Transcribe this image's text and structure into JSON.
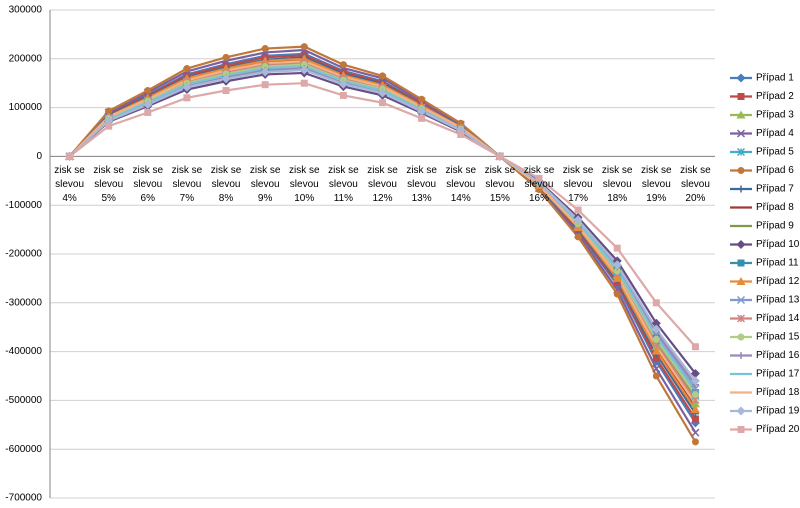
{
  "chart_data": {
    "type": "line",
    "categories": [
      "zisk se slevou 4%",
      "zisk se slevou 5%",
      "zisk se slevou 6%",
      "zisk se slevou 7%",
      "zisk se slevou 8%",
      "zisk se slevou 9%",
      "zisk se slevou 10%",
      "zisk se slevou 11%",
      "zisk se slevou 12%",
      "zisk se slevou 13%",
      "zisk se slevou 14%",
      "zisk se slevou 15%",
      "zisk se slevou 16%",
      "zisk se slevou 17%",
      "zisk se slevou 18%",
      "zisk se slevou 19%",
      "zisk se slevou 20%"
    ],
    "ylim": [
      -700000,
      300000
    ],
    "yticks": [
      -700000,
      -600000,
      -500000,
      -400000,
      -300000,
      -200000,
      -100000,
      0,
      100000,
      200000,
      300000
    ],
    "grid": true,
    "legend": "right",
    "series": [
      {
        "name": "Případ 1",
        "color": "#4a7ebb",
        "marker": "diamond",
        "values": [
          0,
          87000,
          126000,
          168000,
          189000,
          206000,
          210000,
          175000,
          154000,
          109000,
          63000,
          0,
          -63000,
          -154000,
          -263000,
          -420000,
          -546000
        ]
      },
      {
        "name": "Případ 2",
        "color": "#be4b48",
        "marker": "square",
        "values": [
          0,
          86000,
          124000,
          166000,
          186000,
          203000,
          207000,
          173000,
          152000,
          108000,
          62000,
          0,
          -62000,
          -152000,
          -259000,
          -414000,
          -538000
        ]
      },
      {
        "name": "Případ 3",
        "color": "#98b954",
        "marker": "triangle",
        "values": [
          0,
          81000,
          117000,
          156000,
          176000,
          191000,
          195000,
          163000,
          143000,
          101000,
          59000,
          0,
          -59000,
          -143000,
          -244000,
          -390000,
          -507000
        ]
      },
      {
        "name": "Případ 4",
        "color": "#7d60a0",
        "marker": "x",
        "values": [
          0,
          90000,
          131000,
          174000,
          196000,
          213000,
          218000,
          181000,
          160000,
          113000,
          65000,
          0,
          -65000,
          -160000,
          -273000,
          -435000,
          -566000
        ]
      },
      {
        "name": "Případ 5",
        "color": "#46aac5",
        "marker": "star",
        "values": [
          0,
          78000,
          113000,
          151000,
          170000,
          185000,
          189000,
          158000,
          139000,
          98000,
          57000,
          0,
          -57000,
          -139000,
          -237000,
          -378000,
          -491000
        ]
      },
      {
        "name": "Případ 6",
        "color": "#c0783a",
        "marker": "circle",
        "values": [
          0,
          93000,
          135000,
          180000,
          203000,
          221000,
          225000,
          188000,
          165000,
          117000,
          68000,
          0,
          -68000,
          -165000,
          -282000,
          -450000,
          -585000
        ]
      },
      {
        "name": "Případ 7",
        "color": "#3d6a9c",
        "marker": "plus",
        "values": [
          0,
          84000,
          122000,
          162000,
          182000,
          198000,
          203000,
          169000,
          149000,
          105000,
          61000,
          0,
          -61000,
          -149000,
          -254000,
          -405000,
          -527000
        ]
      },
      {
        "name": "Případ 8",
        "color": "#9e3b38",
        "marker": "dash",
        "values": [
          0,
          82000,
          119000,
          158000,
          178000,
          194000,
          198000,
          165000,
          145000,
          103000,
          59000,
          0,
          -59000,
          -145000,
          -248000,
          -396000,
          -515000
        ]
      },
      {
        "name": "Případ 9",
        "color": "#7e9a45",
        "marker": "dash",
        "values": [
          0,
          79000,
          114000,
          152000,
          171000,
          187000,
          191000,
          159000,
          140000,
          99000,
          57000,
          0,
          -57000,
          -140000,
          -239000,
          -381000,
          -495000
        ]
      },
      {
        "name": "Případ 10",
        "color": "#664e84",
        "marker": "diamond",
        "values": [
          0,
          71000,
          103000,
          137000,
          154000,
          168000,
          171000,
          143000,
          125000,
          89000,
          51000,
          0,
          -51000,
          -125000,
          -214000,
          -342000,
          -445000
        ]
      },
      {
        "name": "Případ 11",
        "color": "#3690aa",
        "marker": "square",
        "values": [
          0,
          77000,
          112000,
          149000,
          167000,
          182000,
          186000,
          155000,
          136000,
          97000,
          56000,
          0,
          -56000,
          -136000,
          -233000,
          -372000,
          -484000
        ]
      },
      {
        "name": "Případ 12",
        "color": "#e78a3a",
        "marker": "triangle",
        "values": [
          0,
          82000,
          120000,
          160000,
          180000,
          196000,
          200000,
          166000,
          146000,
          104000,
          60000,
          0,
          -60000,
          -146000,
          -250000,
          -399000,
          -519000
        ]
      },
      {
        "name": "Případ 13",
        "color": "#7c9acc",
        "marker": "x",
        "values": [
          0,
          76000,
          110000,
          146000,
          165000,
          179000,
          183000,
          153000,
          134000,
          95000,
          55000,
          0,
          -55000,
          -134000,
          -229000,
          -366000,
          -476000
        ]
      },
      {
        "name": "Případ 14",
        "color": "#d08482",
        "marker": "star",
        "values": [
          0,
          79000,
          115000,
          154000,
          173000,
          188000,
          192000,
          160000,
          141000,
          100000,
          58000,
          0,
          -58000,
          -141000,
          -241000,
          -384000,
          -499000
        ]
      },
      {
        "name": "Případ 15",
        "color": "#b0cc85",
        "marker": "circle",
        "values": [
          0,
          78000,
          113000,
          150000,
          169000,
          184000,
          188000,
          156000,
          138000,
          98000,
          56000,
          0,
          -56000,
          -138000,
          -235000,
          -375000,
          -488000
        ]
      },
      {
        "name": "Případ 16",
        "color": "#9a88b6",
        "marker": "plus",
        "values": [
          0,
          74000,
          108000,
          144000,
          162000,
          176000,
          180000,
          150000,
          132000,
          94000,
          54000,
          0,
          -54000,
          -132000,
          -226000,
          -360000,
          -468000
        ]
      },
      {
        "name": "Případ 17",
        "color": "#7bc2d6",
        "marker": "dash",
        "values": [
          0,
          76000,
          111000,
          148000,
          166000,
          181000,
          185000,
          154000,
          135000,
          96000,
          55000,
          0,
          -55000,
          -135000,
          -231000,
          -369000,
          -480000
        ]
      },
      {
        "name": "Případ 18",
        "color": "#f4b183",
        "marker": "dash",
        "values": [
          0,
          81000,
          117000,
          156000,
          176000,
          191000,
          195000,
          163000,
          143000,
          101000,
          59000,
          0,
          -59000,
          -143000,
          -244000,
          -390000,
          -507000
        ]
      },
      {
        "name": "Případ 19",
        "color": "#a7b8db",
        "marker": "diamond",
        "values": [
          0,
          73000,
          106000,
          142000,
          159000,
          173000,
          177000,
          148000,
          130000,
          92000,
          53000,
          0,
          -53000,
          -130000,
          -222000,
          -354000,
          -460000
        ]
      },
      {
        "name": "Případ 20",
        "color": "#dda8a8",
        "marker": "square",
        "values": [
          0,
          62000,
          90000,
          120000,
          135000,
          147000,
          150000,
          125000,
          110000,
          78000,
          45000,
          0,
          -45000,
          -110000,
          -188000,
          -300000,
          -390000
        ]
      }
    ]
  }
}
